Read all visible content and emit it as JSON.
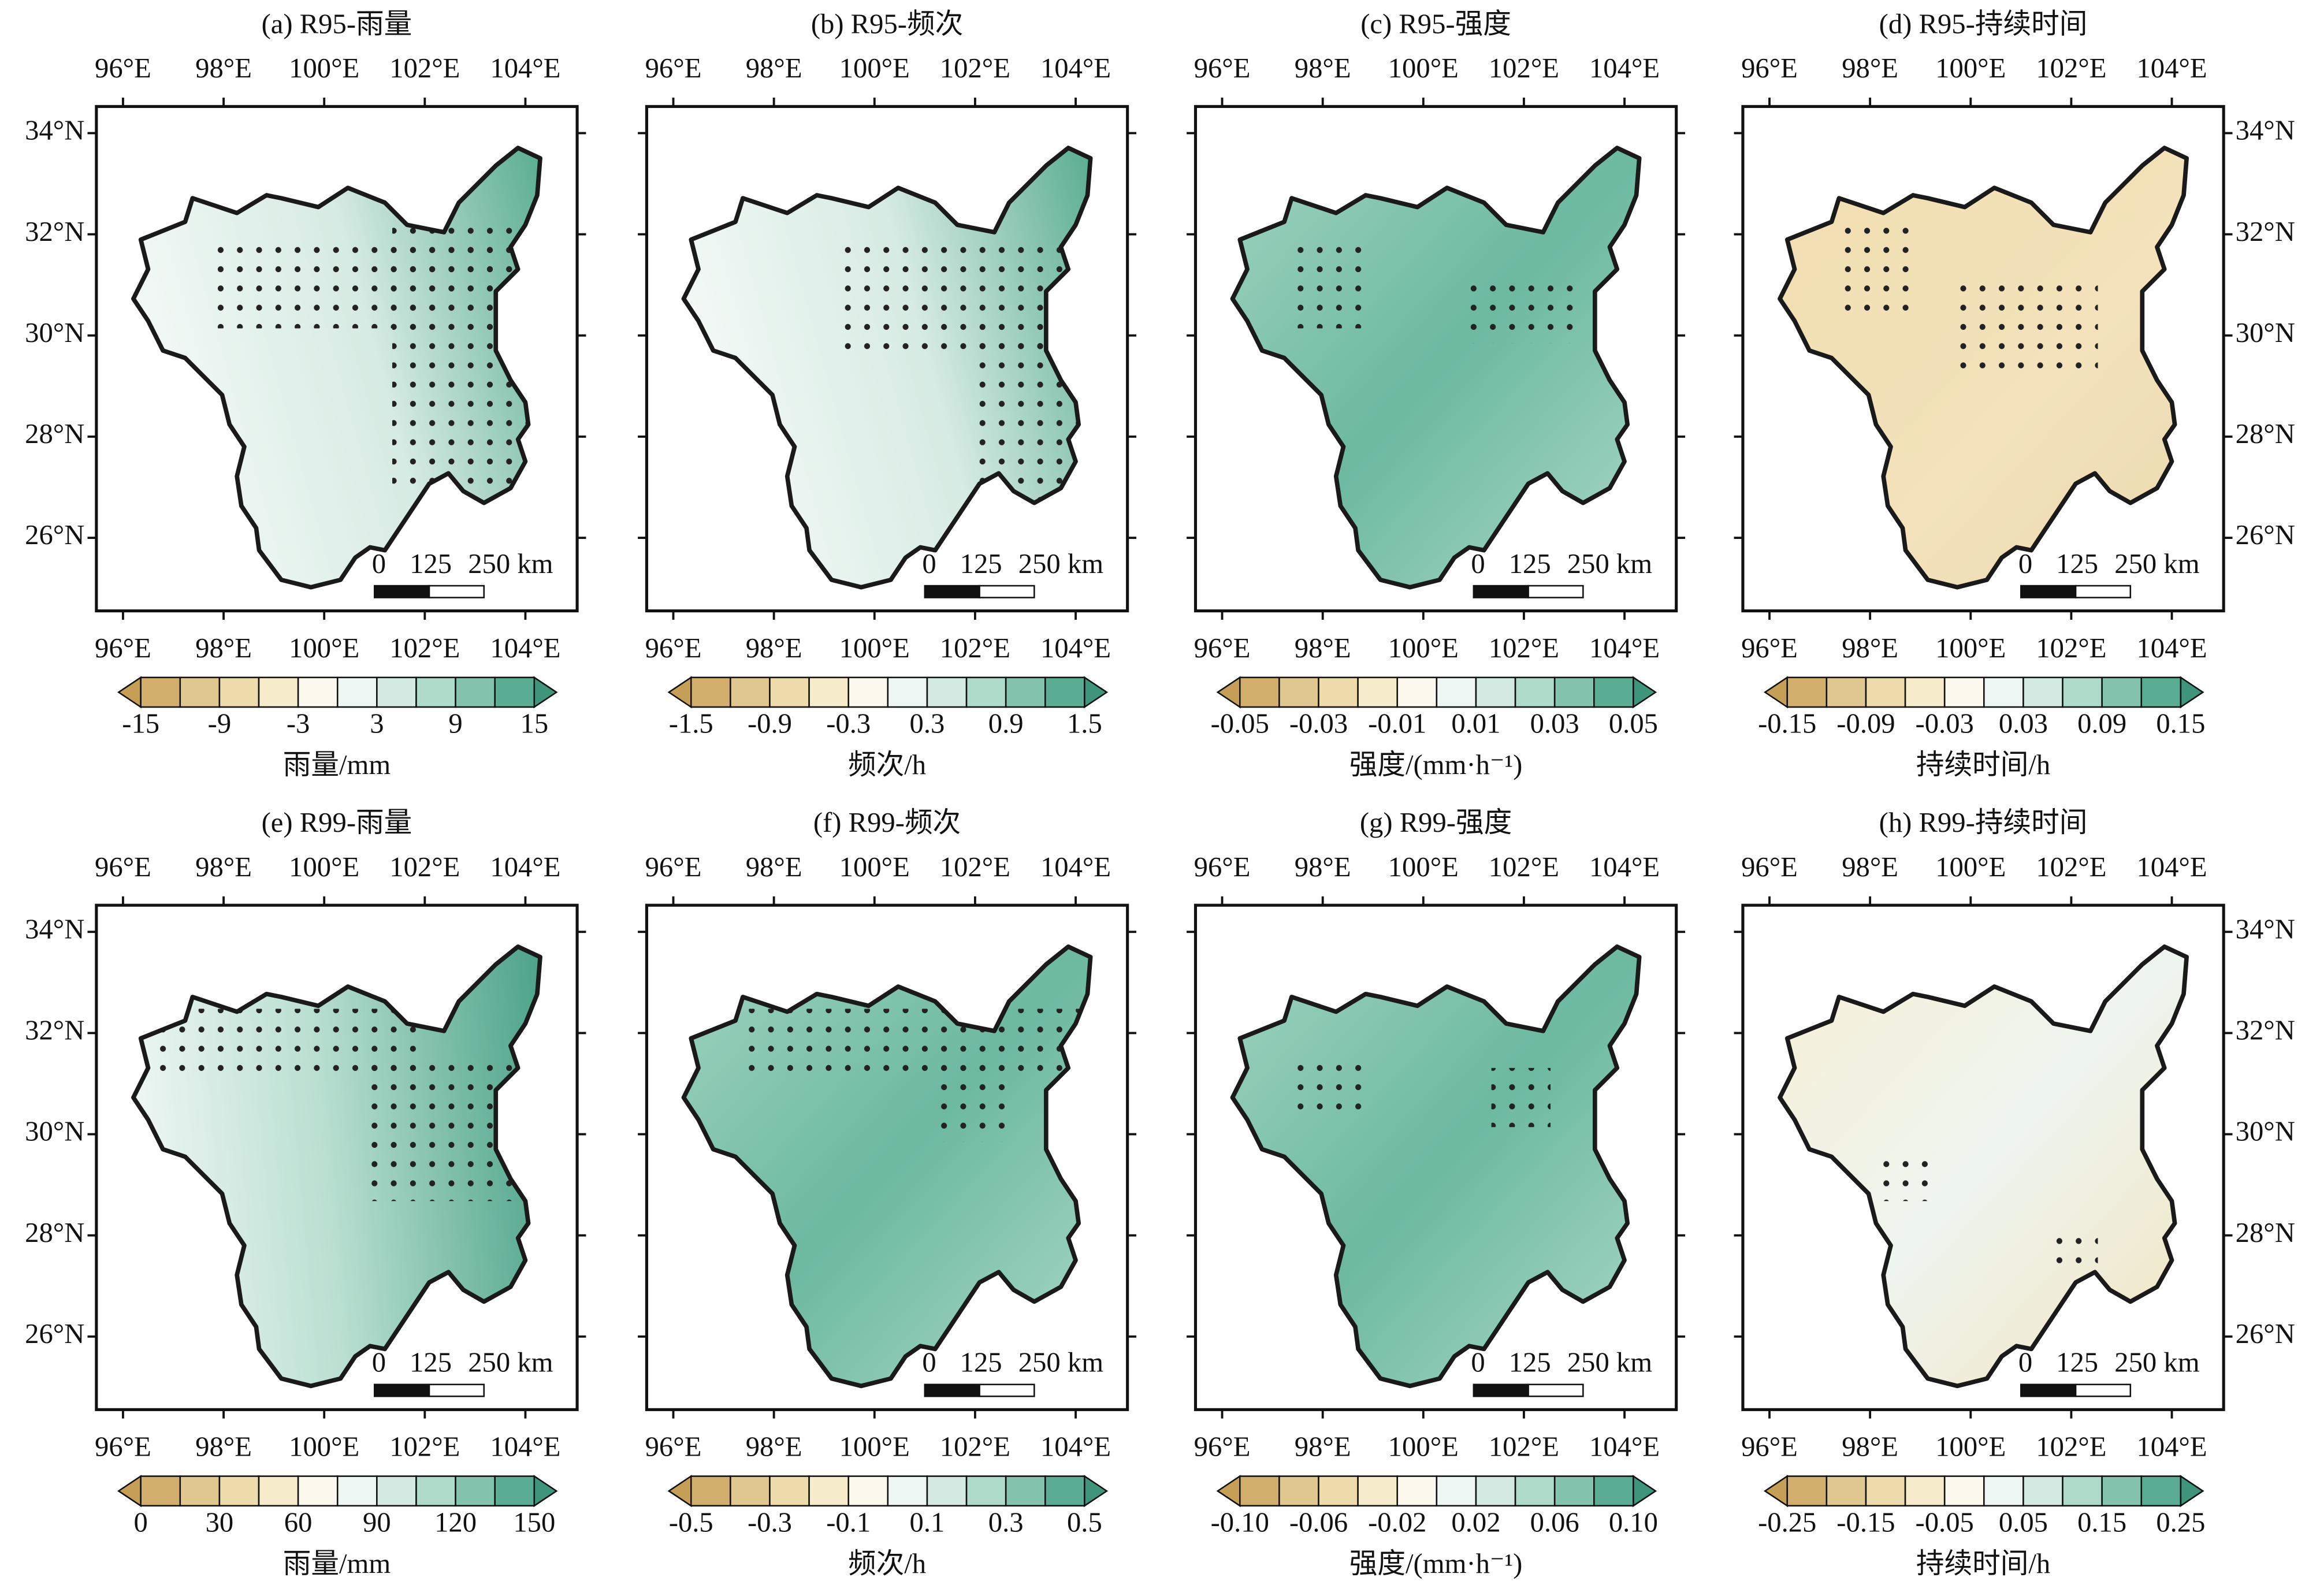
{
  "lon_ticks": [
    "96°E",
    "98°E",
    "100°E",
    "102°E",
    "104°E"
  ],
  "lat_ticks": [
    "34°N",
    "32°N",
    "30°N",
    "28°N",
    "26°N"
  ],
  "scale_bar": [
    "0",
    "125",
    "250 km"
  ],
  "colormap": {
    "low": "#c69f57",
    "high": "#3f957a",
    "bins": [
      "#d2ae6c",
      "#e0c78f",
      "#eddbab",
      "#f6eccc",
      "#fcf8ee",
      "#eef6f3",
      "#d3e9e1",
      "#addac9",
      "#84c4ae",
      "#5aad92"
    ]
  },
  "panels": [
    {
      "title": "(a) R95-雨量",
      "colorbar_ticks": [
        "-15",
        "-9",
        "-3",
        "3",
        "9",
        "15"
      ],
      "colorbar_label": "雨量/mm"
    },
    {
      "title": "(b) R95-频次",
      "colorbar_ticks": [
        "-1.5",
        "-0.9",
        "-0.3",
        "0.3",
        "0.9",
        "1.5"
      ],
      "colorbar_label": "频次/h"
    },
    {
      "title": "(c) R95-强度",
      "colorbar_ticks": [
        "-0.05",
        "-0.03",
        "-0.01",
        "0.01",
        "0.03",
        "0.05"
      ],
      "colorbar_label": "强度/(mm·h⁻¹)"
    },
    {
      "title": "(d) R95-持续时间",
      "colorbar_ticks": [
        "-0.15",
        "-0.09",
        "-0.03",
        "0.03",
        "0.09",
        "0.15"
      ],
      "colorbar_label": "持续时间/h"
    },
    {
      "title": "(e) R99-雨量",
      "colorbar_ticks": [
        "0",
        "30",
        "60",
        "90",
        "120",
        "150"
      ],
      "colorbar_label": "雨量/mm"
    },
    {
      "title": "(f) R99-频次",
      "colorbar_ticks": [
        "-0.5",
        "-0.3",
        "-0.1",
        "0.1",
        "0.3",
        "0.5"
      ],
      "colorbar_label": "频次/h"
    },
    {
      "title": "(g) R99-强度",
      "colorbar_ticks": [
        "-0.10",
        "-0.06",
        "-0.02",
        "0.02",
        "0.06",
        "0.10"
      ],
      "colorbar_label": "强度/(mm·h⁻¹)"
    },
    {
      "title": "(h) R99-持续时间",
      "colorbar_ticks": [
        "-0.25",
        "-0.15",
        "-0.05",
        "0.05",
        "0.15",
        "0.25"
      ],
      "colorbar_label": "持续时间/h"
    }
  ]
}
